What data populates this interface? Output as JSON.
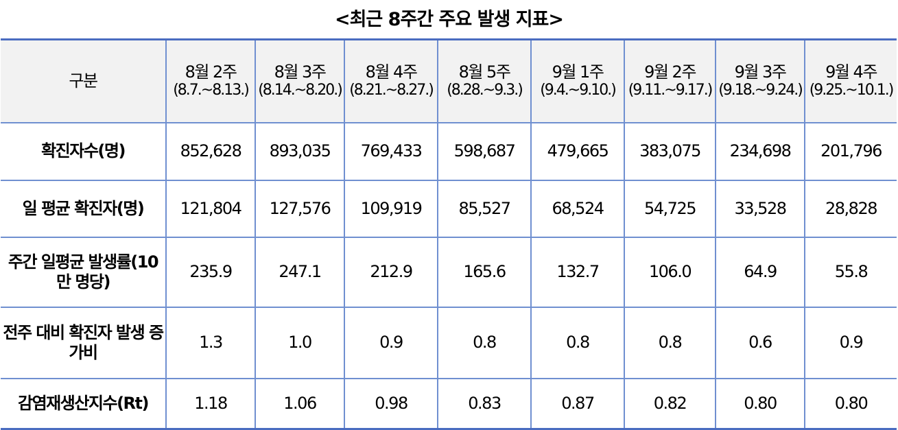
{
  "title": "<최근 8주간 주요 발생 지표>",
  "table": {
    "corner": "구분",
    "columns": [
      {
        "week": "8월 2주",
        "range": "(8.7.~8.13.)"
      },
      {
        "week": "8월 3주",
        "range": "(8.14.~8.20.)"
      },
      {
        "week": "8월 4주",
        "range": "(8.21.~8.27.)"
      },
      {
        "week": "8월 5주",
        "range": "(8.28.~9.3.)"
      },
      {
        "week": "9월 1주",
        "range": "(9.4.~9.10.)"
      },
      {
        "week": "9월 2주",
        "range": "(9.11.~9.17.)"
      },
      {
        "week": "9월 3주",
        "range": "(9.18.~9.24.)"
      },
      {
        "week": "9월 4주",
        "range": "(9.25.~10.1.)"
      }
    ],
    "rows": [
      {
        "label": "확진자수(명)",
        "cells": [
          "852,628",
          "893,035",
          "769,433",
          "598,687",
          "479,665",
          "383,075",
          "234,698",
          "201,796"
        ]
      },
      {
        "label": "일 평균 확진자(명)",
        "cells": [
          "121,804",
          "127,576",
          "109,919",
          "85,527",
          "68,524",
          "54,725",
          "33,528",
          "28,828"
        ]
      },
      {
        "label": "주간 일평균 발생률(10만 명당)",
        "cells": [
          "235.9",
          "247.1",
          "212.9",
          "165.6",
          "132.7",
          "106.0",
          "64.9",
          "55.8"
        ]
      },
      {
        "label": "전주 대비 확진자 발생 증가비",
        "cells": [
          "1.3",
          "1.0",
          "0.9",
          "0.8",
          "0.8",
          "0.8",
          "0.6",
          "0.9"
        ]
      },
      {
        "label": "감염재생산지수(Rt)",
        "cells": [
          "1.18",
          "1.06",
          "0.98",
          "0.83",
          "0.87",
          "0.82",
          "0.80",
          "0.80"
        ]
      }
    ]
  }
}
